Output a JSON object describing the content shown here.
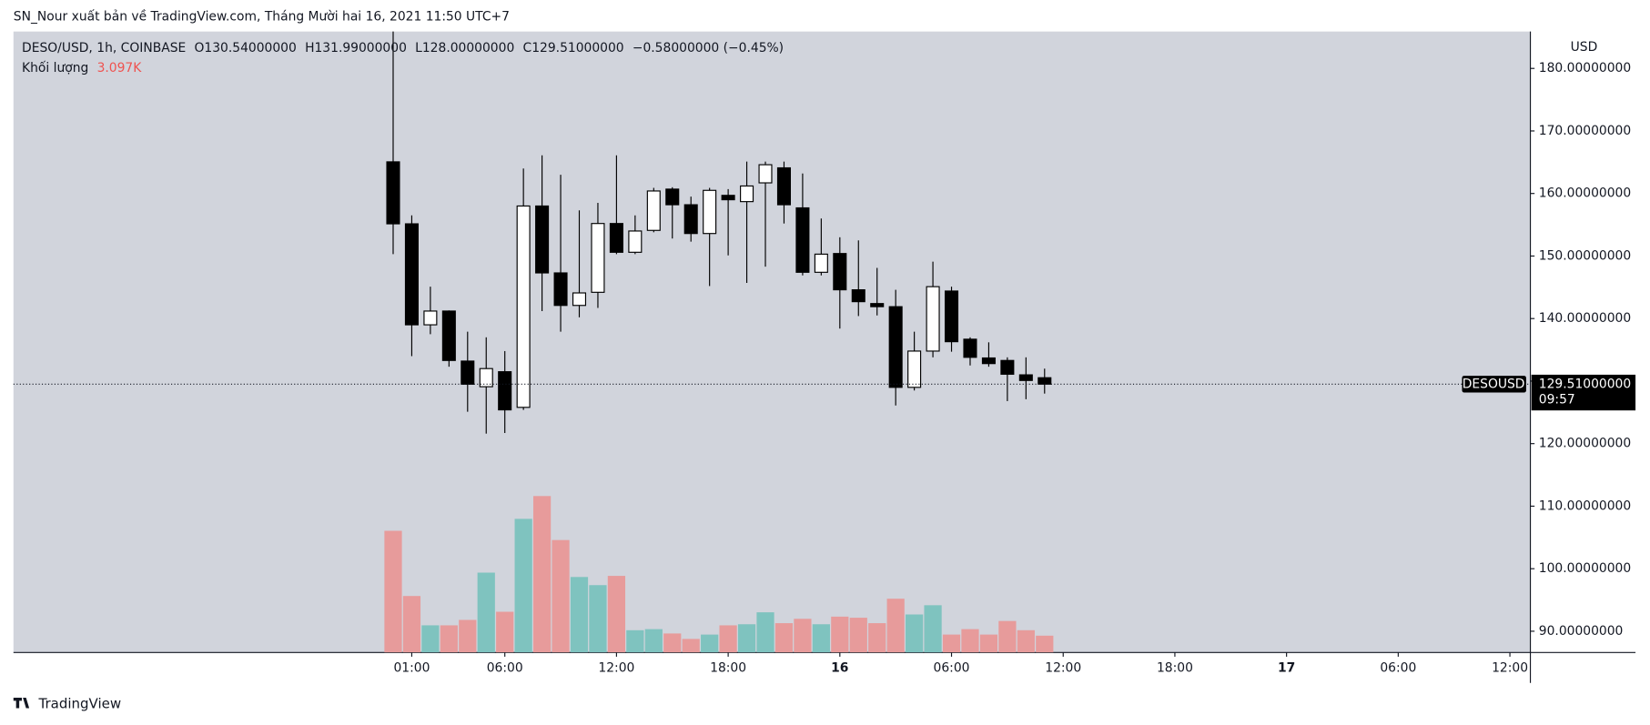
{
  "header": {
    "publisher": "SN_Nour xuất bản về TradingView.com, Tháng Mười hai 16, 2021 11:50 UTC+7",
    "footer": "TradingView"
  },
  "chart_data": {
    "type": "candlestick",
    "symbol": "DESO/USD, 1h, COINBASE",
    "o_letter": "O",
    "h_letter": "H",
    "l_letter": "L",
    "c_letter": "C",
    "open_label": "130.54000000",
    "high_label": "131.99000000",
    "low_label": "128.00000000",
    "close_label": "129.51000000",
    "change_label": "−0.58000000 (−0.45%)",
    "volume_title": "Khối lượng",
    "volume_label": "3.097K",
    "currency": "USD",
    "price_tag": "DESOUSD",
    "countdown": "09:57",
    "x": [
      "2021-12-15T00:00",
      "2021-12-15T01:00",
      "2021-12-15T02:00",
      "2021-12-15T03:00",
      "2021-12-15T04:00",
      "2021-12-15T05:00",
      "2021-12-15T06:00",
      "2021-12-15T07:00",
      "2021-12-15T08:00",
      "2021-12-15T09:00",
      "2021-12-15T10:00",
      "2021-12-15T11:00",
      "2021-12-15T12:00",
      "2021-12-15T13:00",
      "2021-12-15T14:00",
      "2021-12-15T15:00",
      "2021-12-15T16:00",
      "2021-12-15T17:00",
      "2021-12-15T18:00",
      "2021-12-15T19:00",
      "2021-12-15T20:00",
      "2021-12-15T21:00",
      "2021-12-15T22:00",
      "2021-12-15T23:00",
      "2021-12-16T00:00",
      "2021-12-16T01:00",
      "2021-12-16T02:00",
      "2021-12-16T03:00",
      "2021-12-16T04:00",
      "2021-12-16T05:00",
      "2021-12-16T06:00",
      "2021-12-16T07:00",
      "2021-12-16T08:00",
      "2021-12-16T09:00",
      "2021-12-16T10:00",
      "2021-12-16T11:00"
    ],
    "open": [
      165.06,
      155.15,
      139.0,
      141.2,
      133.2,
      129.1,
      131.5,
      125.8,
      158.0,
      147.3,
      142.1,
      144.2,
      155.2,
      150.6,
      154.1,
      160.7,
      158.2,
      153.6,
      159.7,
      158.7,
      161.7,
      164.1,
      157.7,
      147.4,
      150.4,
      144.6,
      142.4,
      141.9,
      129.0,
      134.8,
      144.4,
      136.7,
      133.7,
      133.3,
      131.0,
      130.54
    ],
    "high": [
      190,
      156.5,
      145.1,
      141.3,
      137.9,
      137.0,
      134.8,
      164.0,
      166.1,
      163.0,
      157.3,
      158.5,
      166.1,
      156.5,
      160.9,
      161.0,
      159.5,
      160.9,
      160.7,
      165.1,
      165.1,
      165.1,
      163.2,
      156.0,
      153.0,
      152.5,
      148.1,
      144.6,
      137.9,
      149.1,
      145.1,
      137.0,
      136.2,
      133.8,
      133.8,
      131.99
    ],
    "low": [
      150.3,
      134.0,
      137.5,
      132.3,
      125.1,
      121.6,
      121.7,
      125.4,
      141.2,
      137.9,
      140.2,
      141.7,
      150.3,
      150.3,
      153.8,
      152.8,
      152.3,
      145.2,
      150.1,
      145.7,
      148.3,
      155.2,
      146.9,
      146.9,
      138.4,
      140.4,
      140.5,
      126.1,
      128.5,
      133.8,
      134.7,
      132.5,
      132.3,
      126.8,
      127.1,
      128.0
    ],
    "close": [
      155.15,
      139.0,
      141.2,
      133.3,
      129.5,
      132.0,
      125.4,
      158.0,
      147.3,
      142.1,
      144.1,
      155.2,
      150.6,
      154.0,
      160.4,
      158.2,
      153.6,
      160.5,
      159.0,
      161.2,
      164.6,
      158.2,
      147.4,
      150.3,
      144.6,
      142.7,
      141.9,
      129.0,
      134.8,
      145.1,
      136.3,
      133.8,
      132.8,
      131.1,
      130.1,
      129.51
    ],
    "volume": [
      22400,
      10400,
      5000,
      5000,
      6000,
      14700,
      7500,
      24600,
      28800,
      20700,
      13900,
      12400,
      14100,
      4100,
      4300,
      3500,
      2500,
      3300,
      5000,
      5200,
      7400,
      5400,
      6200,
      5200,
      6600,
      6400,
      5400,
      9900,
      7000,
      8700,
      3300,
      4300,
      3300,
      5800,
      4100,
      3097
    ],
    "up_color": "#ffffff",
    "down_color": "#000000",
    "volume_up_color": "#7fc3bf",
    "volume_down_color": "#e79b9b",
    "background": "#d1d4dc",
    "ylim": [
      86.6,
      185.9
    ],
    "yticks": [
      {
        "value": 90,
        "label": "90.00000000"
      },
      {
        "value": 100,
        "label": "100.00000000"
      },
      {
        "value": 110,
        "label": "110.00000000"
      },
      {
        "value": 120,
        "label": "120.00000000"
      },
      {
        "value": 130,
        "label": "130.00000000"
      },
      {
        "value": 140,
        "label": "140.00000000"
      },
      {
        "value": 150,
        "label": "150.00000000"
      },
      {
        "value": 160,
        "label": "160.00000000"
      },
      {
        "value": 170,
        "label": "170.00000000"
      },
      {
        "value": 180,
        "label": "180.00000000"
      }
    ],
    "volume_lim": [
      0,
      114300
    ],
    "xlim": [
      "2021-12-14T03:36",
      "2021-12-17T13:06"
    ],
    "xticks": [
      {
        "value": "2021-12-15T01:00",
        "label": "01:00"
      },
      {
        "value": "2021-12-15T06:00",
        "label": "06:00"
      },
      {
        "value": "2021-12-15T12:00",
        "label": "12:00"
      },
      {
        "value": "2021-12-15T18:00",
        "label": "18:00"
      },
      {
        "value": "2021-12-16T00:00",
        "label": "16"
      },
      {
        "value": "2021-12-16T06:00",
        "label": "06:00"
      },
      {
        "value": "2021-12-16T12:00",
        "label": "12:00"
      },
      {
        "value": "2021-12-16T18:00",
        "label": "18:00"
      },
      {
        "value": "2021-12-17T00:00",
        "label": "17"
      },
      {
        "value": "2021-12-17T06:00",
        "label": "06:00"
      },
      {
        "value": "2021-12-17T12:00",
        "label": "12:00"
      }
    ]
  }
}
